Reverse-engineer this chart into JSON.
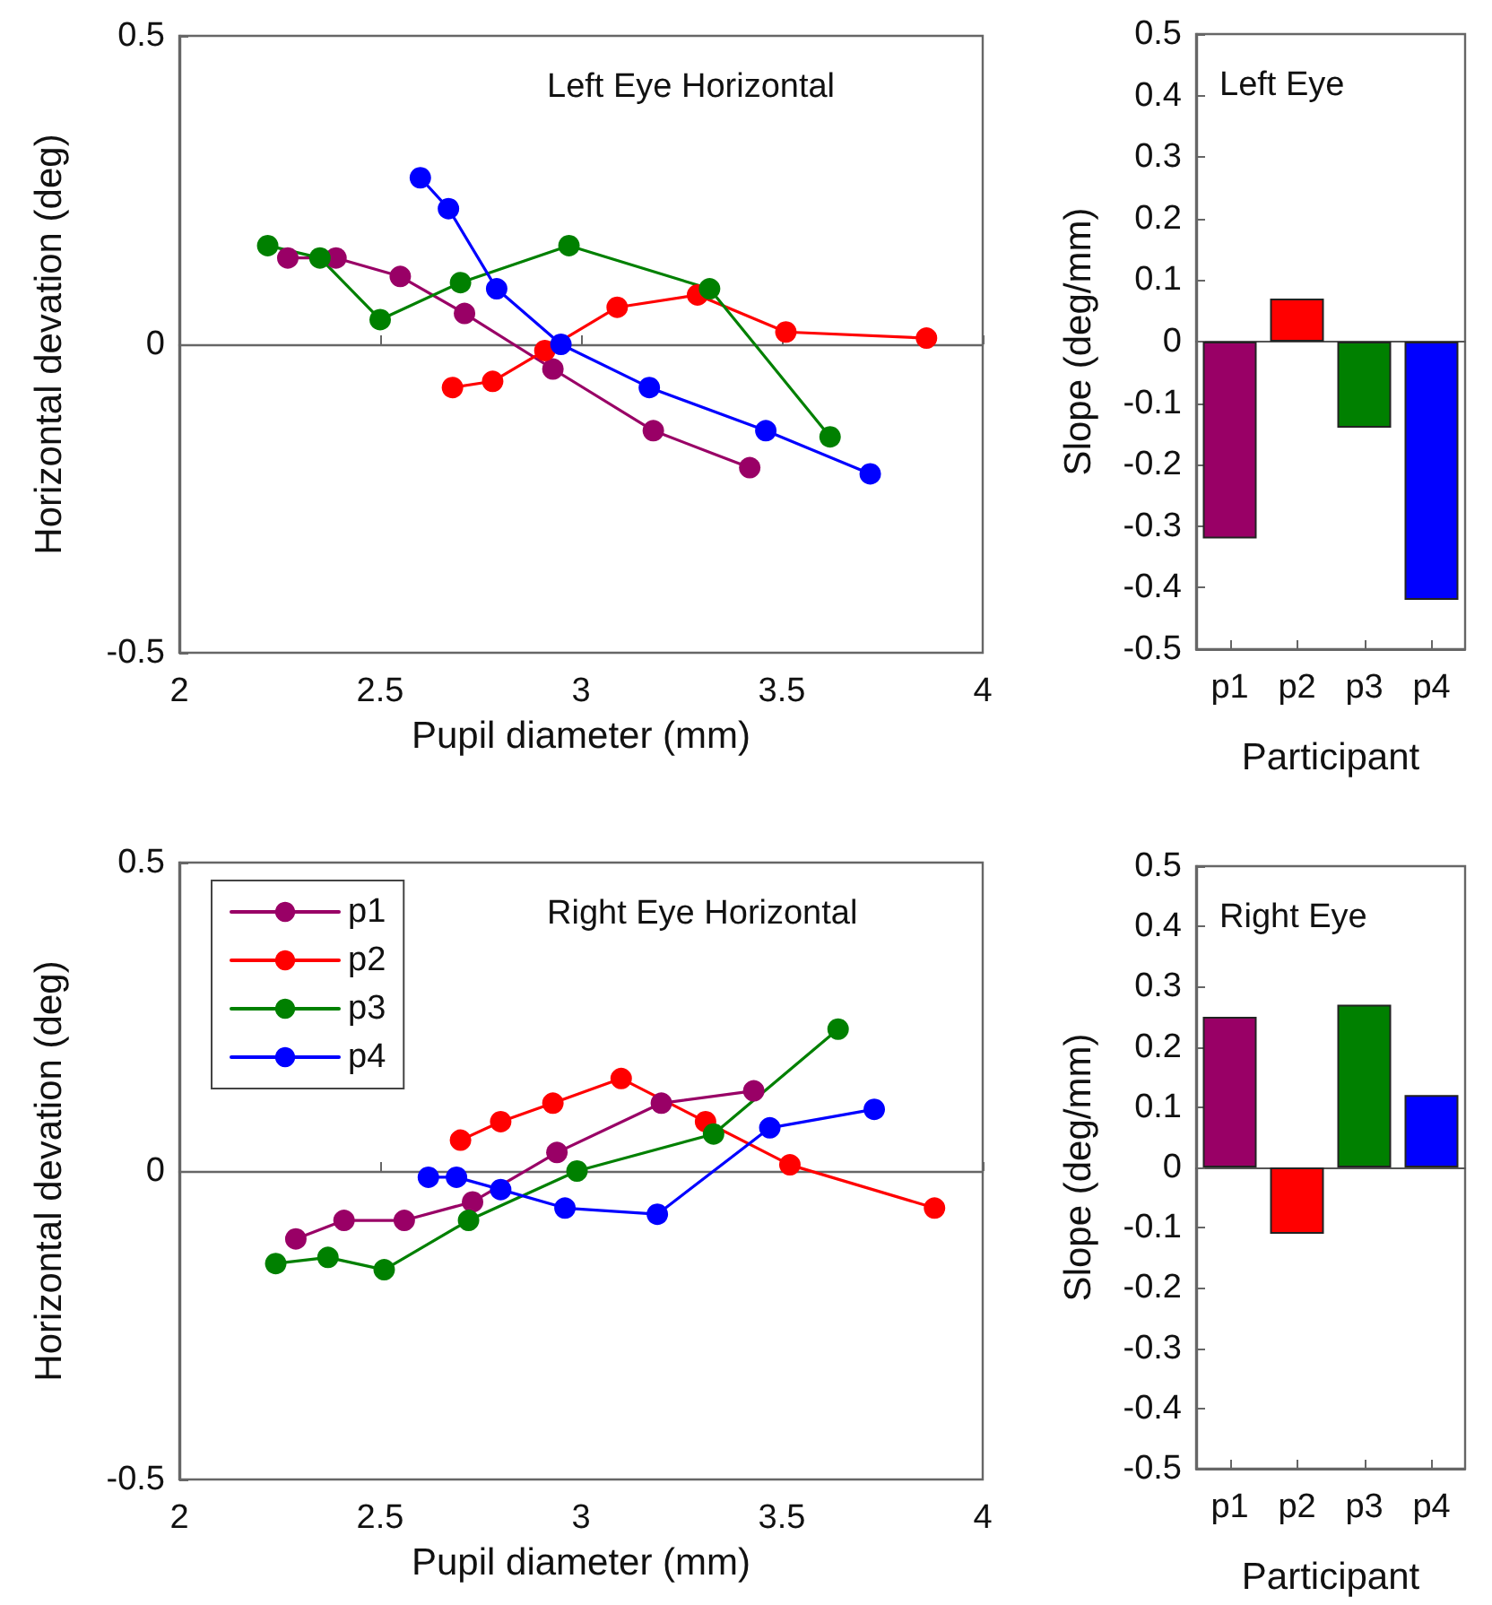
{
  "chart_data": [
    {
      "type": "line",
      "title": "Left Eye Horizontal",
      "xlabel": "Pupil diameter (mm)",
      "ylabel": "Horizontal devation (deg)",
      "xlim": [
        2,
        4
      ],
      "ylim": [
        -0.5,
        0.5
      ],
      "xticks": [
        2,
        2.5,
        3,
        3.5,
        4
      ],
      "yticks": [
        -0.5,
        0,
        0.5
      ],
      "legend": false,
      "marker": "circle",
      "line_style": "solid",
      "series": [
        {
          "color": "#990066",
          "x": [
            2.27,
            2.39,
            2.55,
            2.71,
            2.93,
            3.18,
            3.42
          ],
          "values": [
            0.14,
            0.14,
            0.11,
            0.05,
            -0.04,
            -0.14,
            -0.2
          ]
        },
        {
          "color": "#ff0000",
          "x": [
            2.68,
            2.78,
            2.91,
            3.09,
            3.29,
            3.51,
            3.86
          ],
          "values": [
            -0.07,
            -0.06,
            -0.01,
            0.06,
            0.08,
            0.02,
            0.01
          ]
        },
        {
          "color": "#008000",
          "x": [
            2.22,
            2.35,
            2.5,
            2.7,
            2.97,
            3.32,
            3.62
          ],
          "values": [
            0.16,
            0.14,
            0.04,
            0.1,
            0.16,
            0.09,
            -0.15
          ]
        },
        {
          "color": "#0000ff",
          "x": [
            2.6,
            2.67,
            2.79,
            2.95,
            3.17,
            3.46,
            3.72
          ],
          "values": [
            0.27,
            0.22,
            0.09,
            0,
            -0.07,
            -0.14,
            -0.21
          ]
        }
      ]
    },
    {
      "type": "bar",
      "title": "Left Eye",
      "xlabel": "Participant",
      "ylabel": "Slope (deg/mm)",
      "categories": [
        "p1",
        "p2",
        "p3",
        "p4"
      ],
      "values": [
        -0.32,
        0.07,
        -0.14,
        -0.42
      ],
      "colors": [
        "#990066",
        "#ff0000",
        "#008000",
        "#0000ff"
      ],
      "ylim": [
        -0.5,
        0.5
      ],
      "yticks": [
        -0.5,
        -0.4,
        -0.3,
        -0.2,
        -0.1,
        0,
        0.1,
        0.2,
        0.3,
        0.4,
        0.5
      ]
    },
    {
      "type": "line",
      "title": "Right Eye Horizontal",
      "xlabel": "Pupil diameter (mm)",
      "ylabel": "Horizontal devation (deg)",
      "xlim": [
        2,
        4
      ],
      "ylim": [
        -0.5,
        0.5
      ],
      "xticks": [
        2,
        2.5,
        3,
        3.5,
        4
      ],
      "yticks": [
        -0.5,
        0,
        0.5
      ],
      "legend": "top left",
      "marker": "circle",
      "line_style": "solid",
      "series": [
        {
          "name": "p1",
          "color": "#990066",
          "x": [
            2.29,
            2.41,
            2.56,
            2.73,
            2.94,
            3.2,
            3.43
          ],
          "values": [
            -0.11,
            -0.08,
            -0.08,
            -0.05,
            0.03,
            0.11,
            0.13
          ]
        },
        {
          "name": "p2",
          "color": "#ff0000",
          "x": [
            2.7,
            2.8,
            2.93,
            3.1,
            3.31,
            3.52,
            3.88
          ],
          "values": [
            0.05,
            0.08,
            0.11,
            0.15,
            0.08,
            0.01,
            -0.06
          ]
        },
        {
          "name": "p3",
          "color": "#008000",
          "x": [
            2.24,
            2.37,
            2.51,
            2.72,
            2.99,
            3.33,
            3.64
          ],
          "values": [
            -0.15,
            -0.14,
            -0.16,
            -0.08,
            0,
            0.06,
            0.23
          ]
        },
        {
          "name": "p4",
          "color": "#0000ff",
          "x": [
            2.62,
            2.69,
            2.8,
            2.96,
            3.19,
            3.47,
            3.73
          ],
          "values": [
            -0.01,
            -0.01,
            -0.03,
            -0.06,
            -0.07,
            0.07,
            0.1
          ]
        }
      ]
    },
    {
      "type": "bar",
      "title": "Right Eye",
      "xlabel": "Participant",
      "ylabel": "Slope (deg/mm)",
      "categories": [
        "p1",
        "p2",
        "p3",
        "p4"
      ],
      "values": [
        0.25,
        -0.11,
        0.27,
        0.12
      ],
      "colors": [
        "#990066",
        "#ff0000",
        "#008000",
        "#0000ff"
      ],
      "ylim": [
        -0.5,
        0.5
      ],
      "yticks": [
        -0.5,
        -0.4,
        -0.3,
        -0.2,
        -0.1,
        0,
        0.1,
        0.2,
        0.3,
        0.4,
        0.5
      ]
    }
  ]
}
